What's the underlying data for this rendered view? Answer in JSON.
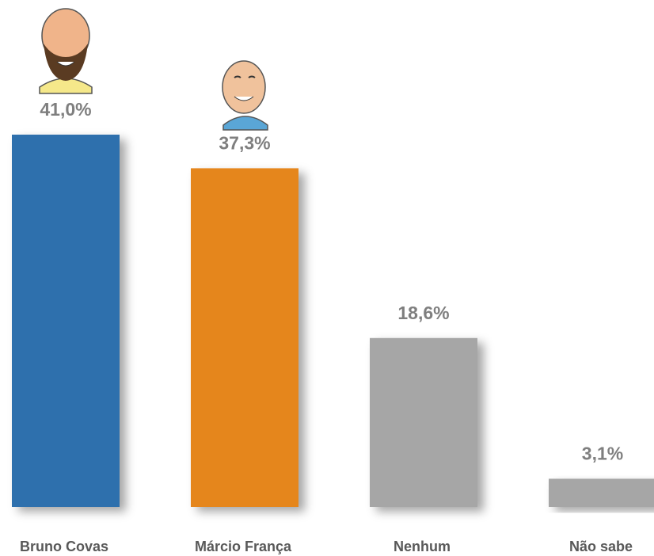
{
  "chart_data": {
    "type": "bar",
    "categories": [
      "Bruno Covas",
      "Márcio França",
      "Nenhum",
      "Não sabe"
    ],
    "values": [
      41.0,
      37.3,
      18.6,
      3.1
    ],
    "value_labels": [
      "41,0%",
      "37,3%",
      "18,6%",
      "3,1%"
    ],
    "colors": [
      "#2e6fad",
      "#e5861f",
      "#a6a6a6",
      "#a6a6a6"
    ]
  }
}
